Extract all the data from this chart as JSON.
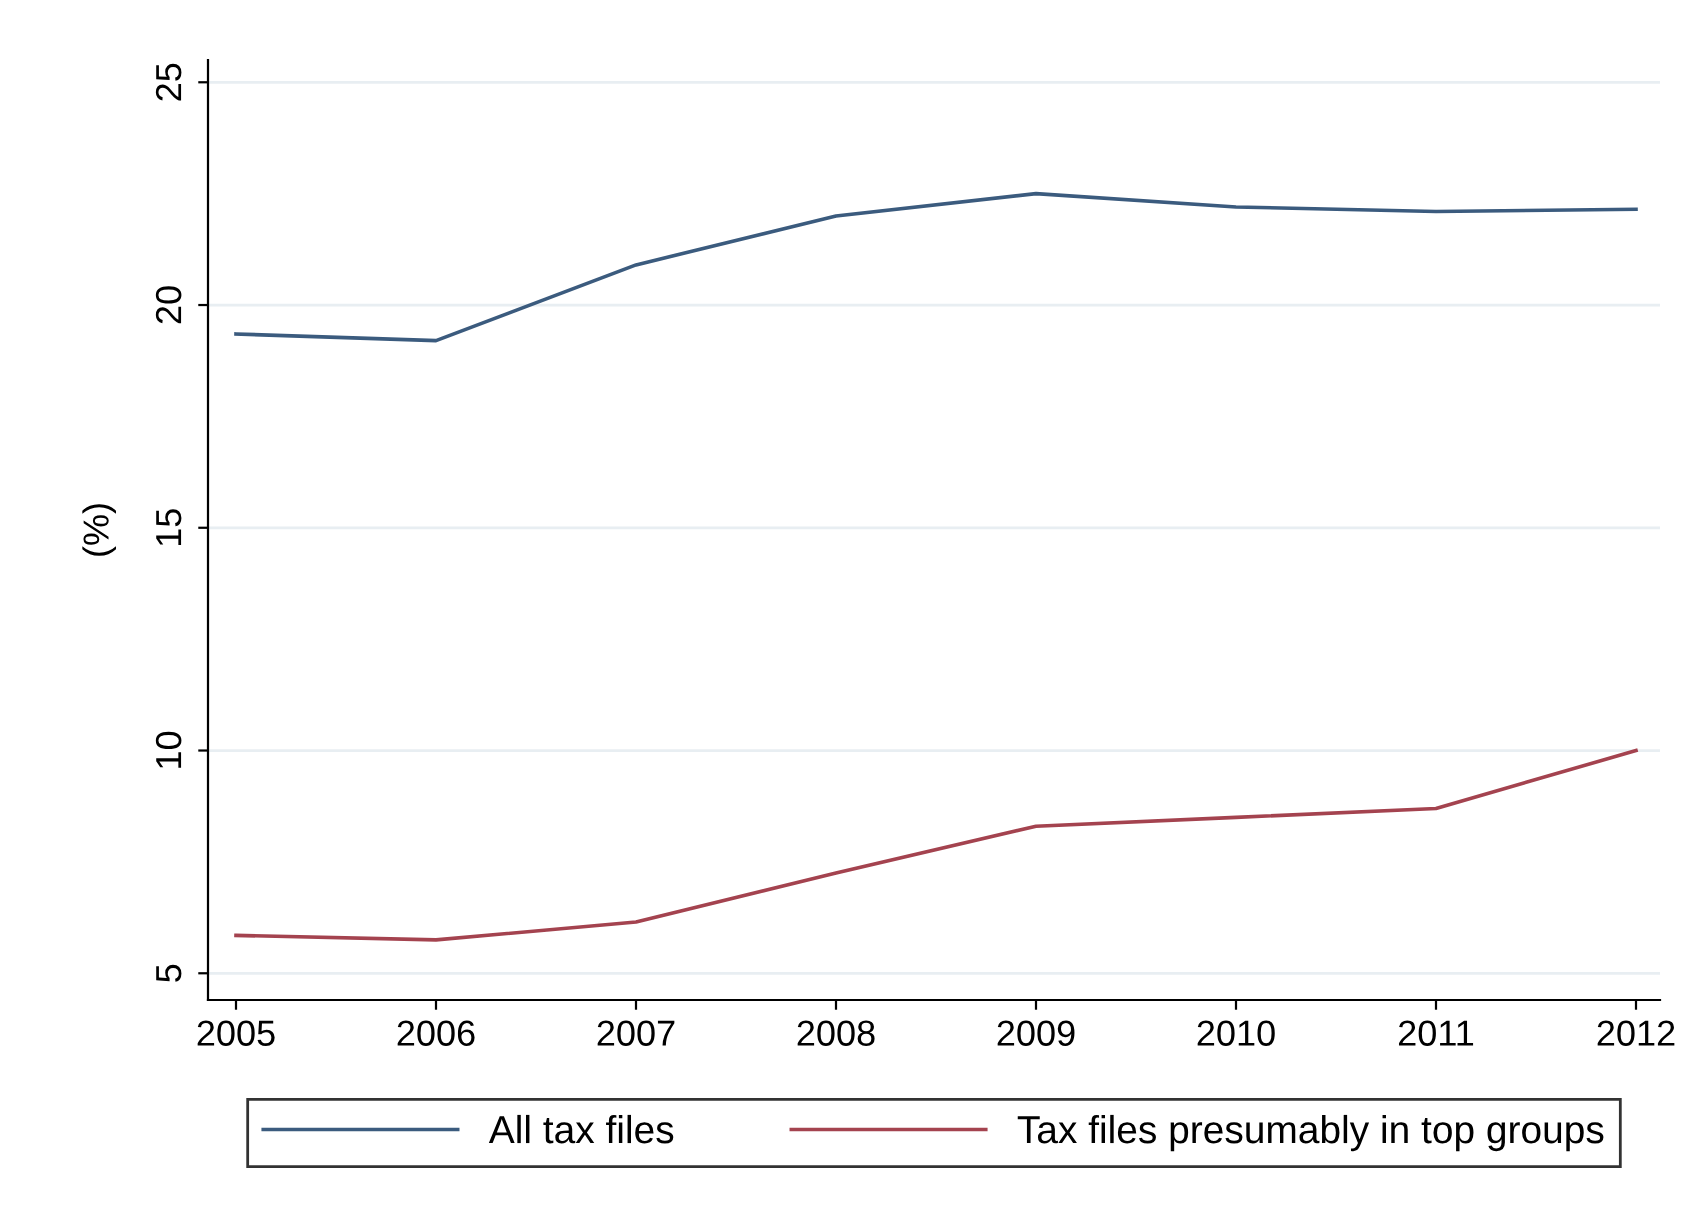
{
  "chart_data": {
    "type": "line",
    "ylabel": "(%)",
    "x": [
      2005,
      2006,
      2007,
      2008,
      2009,
      2010,
      2011,
      2012
    ],
    "series": [
      {
        "name": "All tax files",
        "color": "#3b5b7e",
        "values": [
          19.35,
          19.2,
          20.9,
          22.0,
          22.5,
          22.2,
          22.1,
          22.15
        ]
      },
      {
        "name": "Tax files presumably in top groups",
        "color": "#a4434f",
        "values": [
          5.85,
          5.75,
          6.15,
          7.25,
          8.3,
          8.5,
          8.7,
          10.0
        ]
      }
    ],
    "xlim": [
      2004.86,
      2012.12
    ],
    "xticks": [
      2005,
      2006,
      2007,
      2008,
      2009,
      2010,
      2011,
      2012
    ],
    "ylim": [
      4.4,
      25.5
    ],
    "yticks": [
      5,
      10,
      15,
      20,
      25
    ],
    "grid": "y",
    "legend": "bottom",
    "marker": "none",
    "line_style": "solid"
  }
}
